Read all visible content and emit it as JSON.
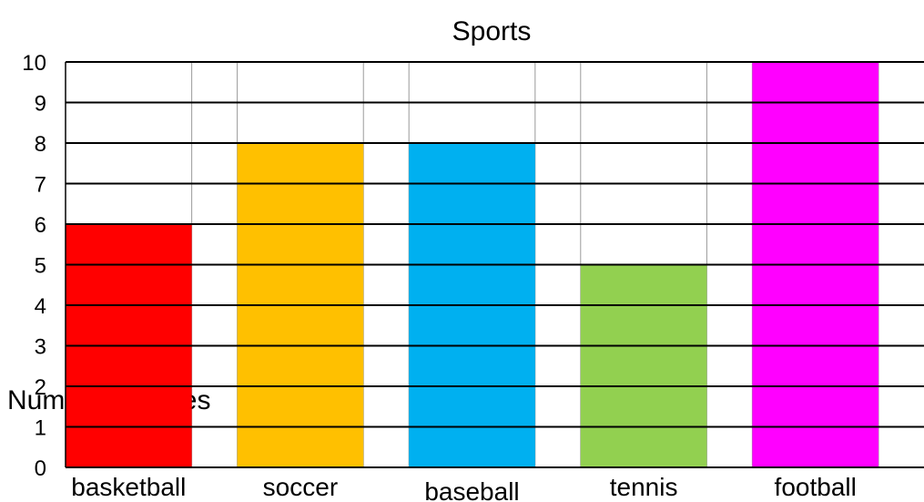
{
  "chart_data": {
    "type": "bar",
    "title": "Sports",
    "ylabel": "Number of Votes",
    "xlabel": "",
    "categories": [
      "basketball",
      "soccer",
      "baseball",
      "tennis",
      "football"
    ],
    "values": [
      6,
      8,
      8,
      5,
      10
    ],
    "colors": [
      "#ff0000",
      "#ffc000",
      "#00b0f0",
      "#92d050",
      "#ff00ff"
    ],
    "ylim": [
      0,
      10
    ],
    "yticks": [
      "0",
      "1",
      "2",
      "3",
      "4",
      "5",
      "6",
      "7",
      "8",
      "9",
      "10"
    ],
    "grid": true,
    "legend": "none"
  }
}
